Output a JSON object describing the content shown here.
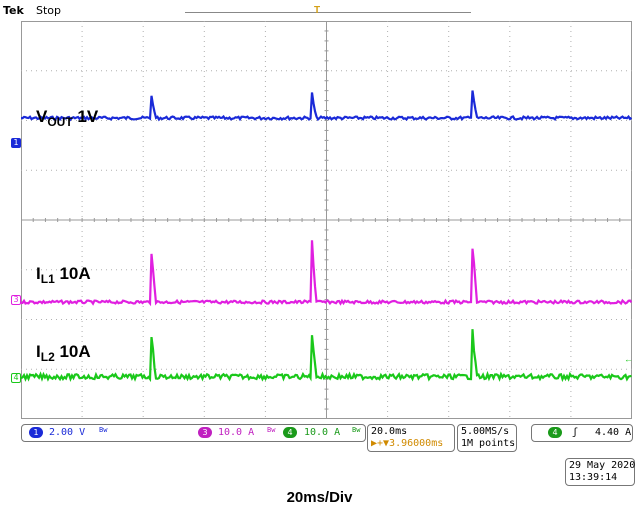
{
  "header": {
    "brand": "Tek",
    "acq_state": "Stop",
    "trigger_position_marker": "T",
    "trigger_icon": "trigger-t-icon"
  },
  "scope": {
    "horizontal_divisions": 10,
    "vertical_divisions": 8,
    "colors": {
      "ch1": "#1a2ad8",
      "ch3": "#e020e0",
      "ch4": "#1ac81a",
      "grid": "#b0b0b0",
      "trigger": "#f0b020"
    }
  },
  "traces": [
    {
      "id": "ch1",
      "marker": "1",
      "label_main": "V",
      "label_sub": "OUT",
      "label_rest": " 1V",
      "color": "#1a2ad8",
      "baseline_div": 1.95,
      "spike_height_div": 0.65,
      "noise_div": 0.03
    },
    {
      "id": "ch3",
      "marker": "3",
      "label_main": "I",
      "label_sub": "L1",
      "label_rest": " 10A",
      "color": "#e020e0",
      "baseline_div": 5.65,
      "spike_height_div": 1.5,
      "noise_div": 0.03
    },
    {
      "id": "ch4",
      "marker": "4",
      "label_main": "I",
      "label_sub": "L2",
      "label_rest": " 10A",
      "color": "#1ac81a",
      "baseline_div": 7.15,
      "spike_height_div": 1.1,
      "noise_div": 0.05
    }
  ],
  "spike_times_div": [
    2.12,
    4.75,
    7.38
  ],
  "readout": {
    "ch1_num": "1",
    "ch1_scale": "2.00 V",
    "ch1_bw": "Bw",
    "ch3_num": "3",
    "ch3_scale": "10.0 A",
    "ch3_bw": "Bw",
    "ch4_num": "4",
    "ch4_scale": "10.0 A",
    "ch4_bw": "Bw",
    "timebase": "20.0ms",
    "trigger_delay": "▶+▼3.96000ms",
    "sample_rate": "5.00MS/s",
    "record_length": "1M points",
    "trig_source": "4",
    "trig_slope": "ʃ",
    "trig_level": "4.40 A"
  },
  "timestamp": {
    "date": "29 May 2020",
    "time": "13:39:14"
  },
  "caption": "20ms/Div"
}
